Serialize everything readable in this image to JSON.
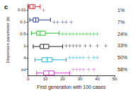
{
  "chart_data": {
    "type": "boxplot",
    "title": "c",
    "orientation": "horizontal",
    "y_label": "Dispersion parameter (k)",
    "x_label": "First generation with 100 cases",
    "categories": [
      "0.01",
      "0.1",
      "0.5",
      "1",
      "4",
      "Inf"
    ],
    "boxes": [
      [
        0.5,
        1,
        3,
        4,
        7
      ],
      [
        1,
        3,
        4.5,
        6,
        13
      ],
      [
        2,
        5,
        7,
        10,
        18
      ],
      [
        3,
        7,
        9,
        12,
        20
      ],
      [
        4,
        8,
        11,
        14,
        22
      ],
      [
        5,
        9,
        12,
        15,
        24
      ]
    ],
    "outliers": [
      [
        9
      ],
      [
        15,
        17,
        20,
        22,
        25
      ],
      [
        20,
        22,
        24,
        26,
        28,
        30,
        32,
        34,
        36,
        38,
        40
      ],
      [
        22,
        24,
        26,
        28,
        30,
        33,
        36,
        40,
        45
      ],
      [
        24,
        26,
        28,
        30,
        32,
        35,
        38,
        40
      ],
      [
        26,
        28,
        30,
        32,
        35,
        38
      ]
    ],
    "colors": [
      "#e8303a",
      "#2b3a8c",
      "#22c02a",
      "#222222",
      "#1ab2d5",
      "#d23fd2"
    ],
    "marker": "plus",
    "right_labels": [
      "1%",
      "7%",
      "24%",
      "33%",
      "50%",
      "58%"
    ],
    "xlim": [
      0,
      50
    ],
    "xticks": [
      0,
      10,
      20,
      30,
      40,
      50
    ],
    "grid": false
  }
}
